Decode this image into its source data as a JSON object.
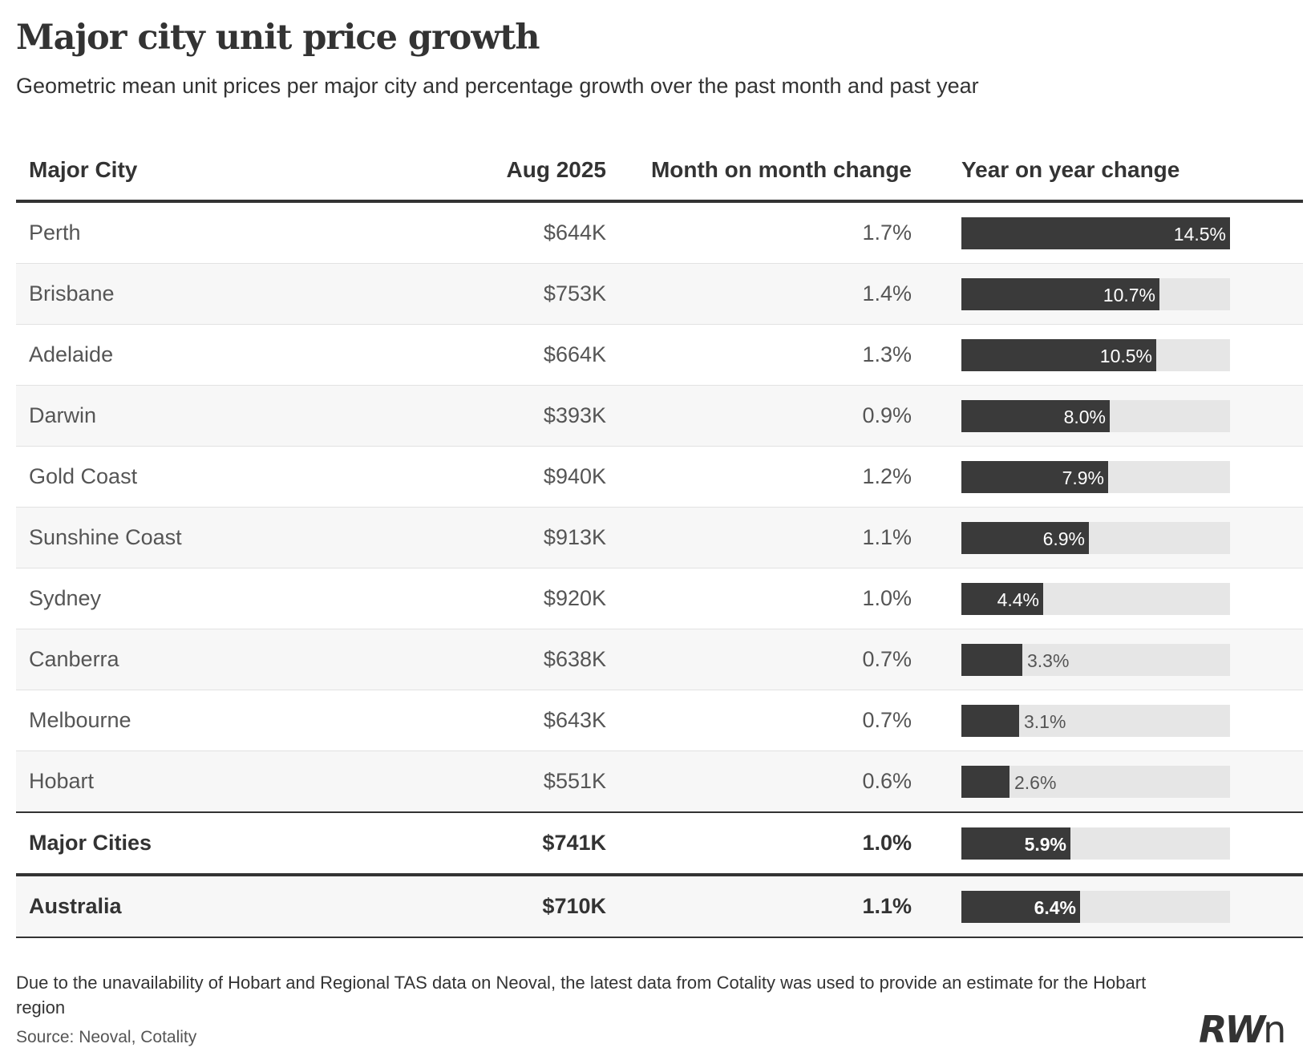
{
  "title": "Major city unit price growth",
  "subtitle": "Geometric mean unit prices per major city and percentage growth over the past month and past year",
  "chart_data": {
    "type": "table",
    "columns": [
      "Major City",
      "Aug 2025",
      "Month on month change",
      "Year on year change"
    ],
    "bar_max": 14.5,
    "rows": [
      {
        "city": "Perth",
        "price": "$644K",
        "mom": "1.7%",
        "yoy": 14.5,
        "yoy_label": "14.5%"
      },
      {
        "city": "Brisbane",
        "price": "$753K",
        "mom": "1.4%",
        "yoy": 10.7,
        "yoy_label": "10.7%"
      },
      {
        "city": "Adelaide",
        "price": "$664K",
        "mom": "1.3%",
        "yoy": 10.5,
        "yoy_label": "10.5%"
      },
      {
        "city": "Darwin",
        "price": "$393K",
        "mom": "0.9%",
        "yoy": 8.0,
        "yoy_label": "8.0%"
      },
      {
        "city": "Gold Coast",
        "price": "$940K",
        "mom": "1.2%",
        "yoy": 7.9,
        "yoy_label": "7.9%"
      },
      {
        "city": "Sunshine Coast",
        "price": "$913K",
        "mom": "1.1%",
        "yoy": 6.9,
        "yoy_label": "6.9%"
      },
      {
        "city": "Sydney",
        "price": "$920K",
        "mom": "1.0%",
        "yoy": 4.4,
        "yoy_label": "4.4%"
      },
      {
        "city": "Canberra",
        "price": "$638K",
        "mom": "0.7%",
        "yoy": 3.3,
        "yoy_label": "3.3%"
      },
      {
        "city": "Melbourne",
        "price": "$643K",
        "mom": "0.7%",
        "yoy": 3.1,
        "yoy_label": "3.1%"
      },
      {
        "city": "Hobart",
        "price": "$551K",
        "mom": "0.6%",
        "yoy": 2.6,
        "yoy_label": "2.6%"
      }
    ],
    "totals": [
      {
        "city": "Major Cities",
        "price": "$741K",
        "mom": "1.0%",
        "yoy": 5.9,
        "yoy_label": "5.9%"
      },
      {
        "city": "Australia",
        "price": "$710K",
        "mom": "1.1%",
        "yoy": 6.4,
        "yoy_label": "6.4%"
      }
    ]
  },
  "colors": {
    "bar": "#3a3a3a",
    "track": "#e6e6e6",
    "text": "#333333"
  },
  "footnote": "Due to the unavailability of Hobart and Regional TAS data on Neoval, the latest data from Cotality was used to provide an estimate for the Hobart region",
  "source": "Source: Neoval, Cotality",
  "logo": {
    "text": "RW",
    "text_n": "n"
  }
}
